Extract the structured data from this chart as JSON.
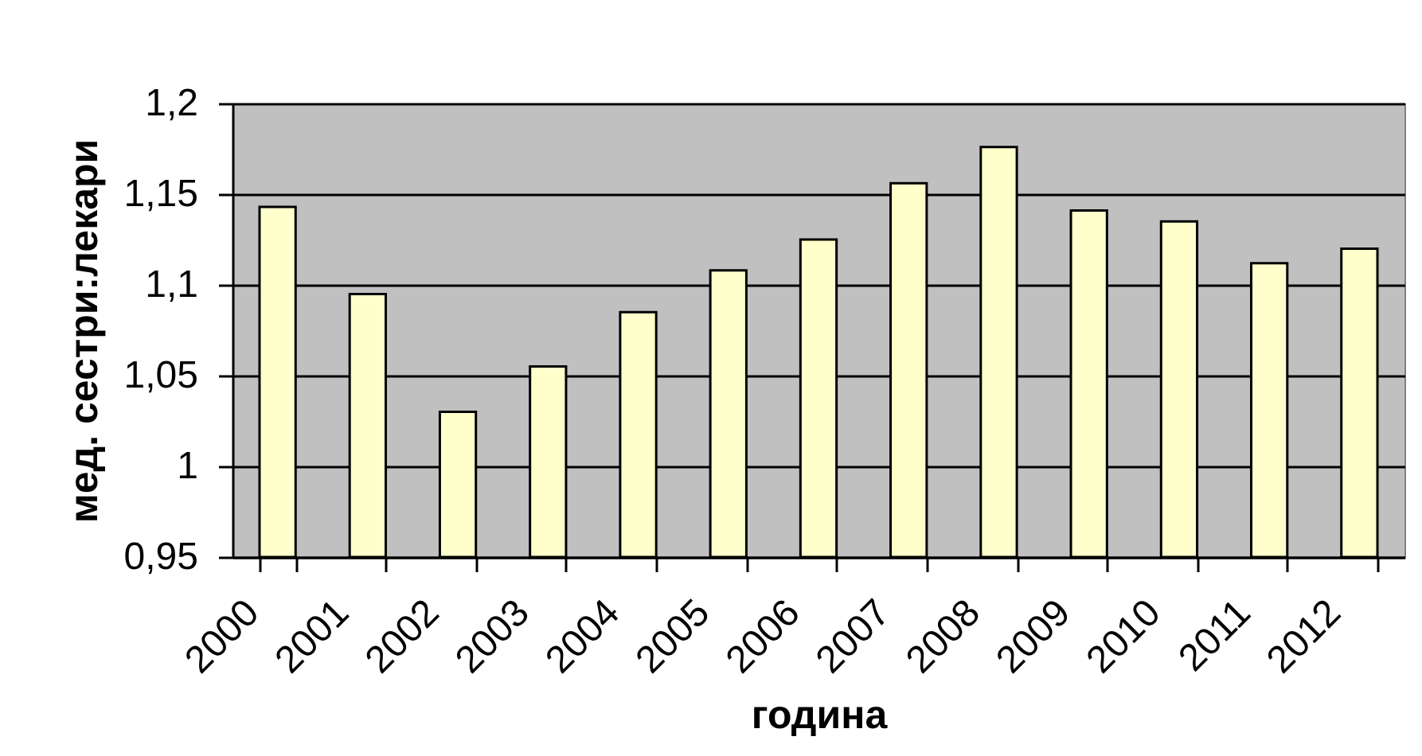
{
  "chart_data": {
    "type": "bar",
    "xlabel": "година",
    "ylabel": "мед. сестри:лекари",
    "categories": [
      "2000",
      "2001",
      "2002",
      "2003",
      "2004",
      "2005",
      "2006",
      "2007",
      "2008",
      "2009",
      "2010",
      "2011",
      "2012"
    ],
    "values": [
      1.143,
      1.095,
      1.03,
      1.055,
      1.085,
      1.108,
      1.125,
      1.156,
      1.176,
      1.141,
      1.135,
      1.112,
      1.12
    ],
    "color": "#ffffcc",
    "ylim": [
      0.95,
      1.2
    ],
    "yticks": [
      {
        "value": 0.95,
        "label": "0,95"
      },
      1,
      {
        "value": 1.05,
        "label": "1,05"
      },
      {
        "value": 1.1,
        "label": "1,1"
      },
      {
        "value": 1.15,
        "label": "1,15"
      },
      {
        "value": 1.2,
        "label": "1,2"
      }
    ],
    "grid": "y"
  }
}
